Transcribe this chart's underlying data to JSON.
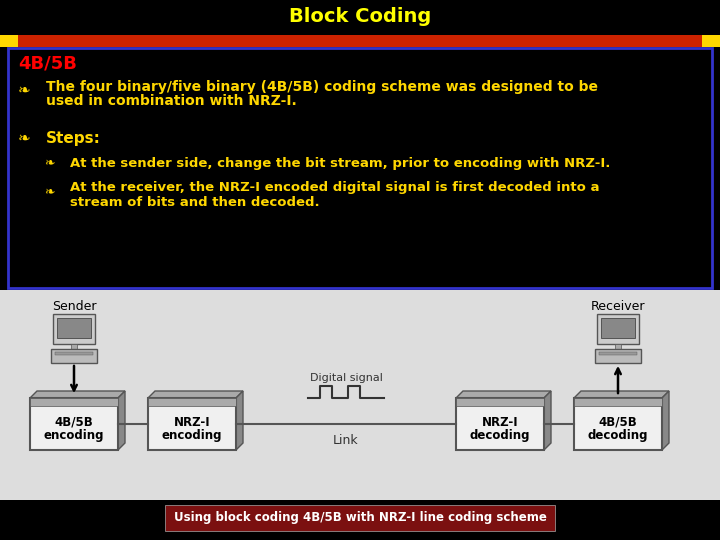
{
  "title": "Block Coding",
  "title_color": "#FFFF00",
  "title_bg": "#000000",
  "red_bar_color": "#CC2200",
  "gold_bar_color": "#FFD700",
  "content_bg": "#000000",
  "content_border": "#3333CC",
  "heading": "4B/5B",
  "heading_color": "#FF0000",
  "bullet_color": "#FFD700",
  "text_color": "#FFD700",
  "line1": "The four binary/five binary (4B/5B) coding scheme was designed to be",
  "line2": "used in combination with NRZ-I.",
  "steps_label": "Steps:",
  "sub1_line1": "At the sender side, change the bit stream, prior to encoding with NRZ-I.",
  "sub2_line1": "At the receiver, the NRZ-I encoded digital signal is first decoded into a",
  "sub2_line2": "stream of bits and then decoded.",
  "diagram_bg": "#DDDDDD",
  "caption_bg": "#7B1010",
  "caption_text": "Using block coding 4B/5B with NRZ-I line coding scheme",
  "caption_text_color": "#FFFFFF",
  "sender_label": "Sender",
  "receiver_label": "Receiver",
  "digital_signal_label": "Digital signal",
  "link_label": "Link",
  "box1_l1": "4B/5B",
  "box1_l2": "encoding",
  "box2_l1": "NRZ-I",
  "box2_l2": "encoding",
  "box3_l1": "NRZ-I",
  "box3_l2": "decoding",
  "box4_l1": "4B/5B",
  "box4_l2": "decoding"
}
